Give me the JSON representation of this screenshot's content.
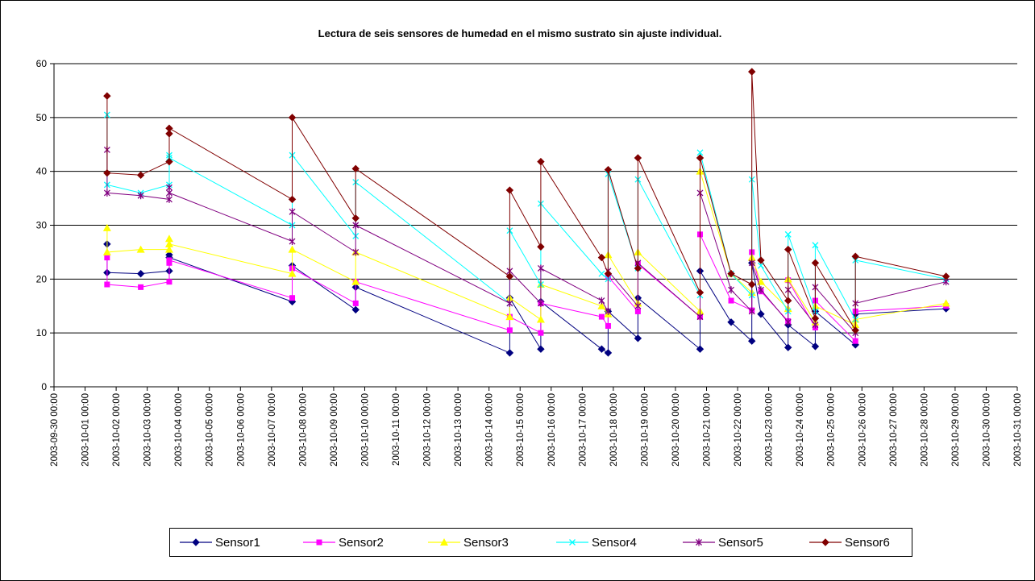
{
  "chart_data": {
    "type": "line",
    "title": "Lectura de seis sensores de humedad en el mismo sustrato sin ajuste individual.",
    "xlabel": "",
    "ylabel": "",
    "ylim": [
      0,
      60
    ],
    "y_ticks": [
      0,
      10,
      20,
      30,
      40,
      50,
      60
    ],
    "x_range_days": [
      "2003-09-30 00:00",
      "2003-10-31 00:00"
    ],
    "x_tick_labels": [
      "2003-09-30 00:00",
      "2003-10-01 00:00",
      "2003-10-02 00:00",
      "2003-10-03 00:00",
      "2003-10-04 00:00",
      "2003-10-05 00:00",
      "2003-10-06 00:00",
      "2003-10-07 00:00",
      "2003-10-08 00:00",
      "2003-10-09 00:00",
      "2003-10-10 00:00",
      "2003-10-11 00:00",
      "2003-10-12 00:00",
      "2003-10-13 00:00",
      "2003-10-14 00:00",
      "2003-10-15 00:00",
      "2003-10-16 00:00",
      "2003-10-17 00:00",
      "2003-10-18 00:00",
      "2003-10-19 00:00",
      "2003-10-20 00:00",
      "2003-10-21 00:00",
      "2003-10-22 00:00",
      "2003-10-23 00:00",
      "2003-10-24 00:00",
      "2003-10-25 00:00",
      "2003-10-26 00:00",
      "2003-10-27 00:00",
      "2003-10-28 00:00",
      "2003-10-29 00:00",
      "2003-10-30 00:00",
      "2003-10-31 00:00"
    ],
    "grid": "horizontal",
    "legend_position": "bottom",
    "x": [
      "2003-10-01 17:00",
      "2003-10-01 17:00",
      "2003-10-02 19:00",
      "2003-10-03 17:00",
      "2003-10-03 17:00",
      "2003-10-03 17:00",
      "2003-10-07 16:00",
      "2003-10-07 16:00",
      "2003-10-09 17:00",
      "2003-10-09 17:00",
      "2003-10-14 16:00",
      "2003-10-14 16:00",
      "2003-10-15 16:00",
      "2003-10-15 16:00",
      "2003-10-17 15:00",
      "2003-10-17 20:00",
      "2003-10-17 20:00",
      "2003-10-18 19:00",
      "2003-10-18 19:00",
      "2003-10-20 19:00",
      "2003-10-20 19:00",
      "2003-10-21 19:00",
      "2003-10-22 11:00",
      "2003-10-22 11:00",
      "2003-10-22 18:00",
      "2003-10-23 15:00",
      "2003-10-23 15:00",
      "2003-10-24 12:00",
      "2003-10-24 12:00",
      "2003-10-25 19:00",
      "2003-10-25 19:00",
      "2003-10-28 17:00"
    ],
    "series": [
      {
        "name": "Sensor1",
        "color": "#000080",
        "marker": "diamond",
        "values": [
          26.5,
          21.2,
          21.0,
          21.5,
          24.5,
          24.0,
          15.8,
          22.5,
          14.3,
          18.5,
          6.3,
          16.5,
          7.0,
          15.8,
          7.0,
          6.3,
          14.0,
          9.0,
          16.5,
          7.0,
          21.5,
          12.0,
          8.5,
          23.0,
          13.5,
          7.3,
          11.5,
          7.5,
          14.0,
          7.8,
          13.5,
          14.5
        ]
      },
      {
        "name": "Sensor2",
        "color": "#ff00ff",
        "marker": "square",
        "values": [
          24.0,
          19.0,
          18.5,
          19.5,
          23.0,
          23.5,
          16.5,
          22.0,
          15.5,
          19.5,
          10.5,
          13.0,
          10.0,
          15.5,
          13.0,
          11.3,
          20.5,
          14.0,
          22.8,
          13.0,
          28.3,
          16.0,
          14.2,
          25.0,
          17.7,
          12.2,
          19.8,
          11.0,
          16.0,
          8.5,
          14.0,
          15.0
        ]
      },
      {
        "name": "Sensor3",
        "color": "#ffff00",
        "marker": "triangle",
        "values": [
          29.5,
          25.0,
          25.5,
          25.5,
          27.5,
          26.5,
          21.0,
          25.5,
          19.5,
          25.0,
          13.0,
          16.5,
          12.5,
          19.0,
          15.0,
          13.5,
          24.5,
          15.5,
          25.0,
          14.0,
          40.0,
          21.0,
          17.5,
          24.0,
          19.5,
          14.5,
          20.0,
          12.0,
          15.0,
          11.5,
          12.5,
          15.5
        ]
      },
      {
        "name": "Sensor4",
        "color": "#00ffff",
        "marker": "x",
        "values": [
          50.5,
          37.5,
          36.0,
          37.5,
          43.0,
          42.5,
          30.0,
          43.0,
          28.0,
          38.0,
          15.5,
          29.0,
          19.0,
          34.0,
          21.0,
          20.0,
          39.5,
          22.0,
          38.5,
          17.0,
          43.5,
          21.0,
          17.0,
          38.5,
          22.5,
          14.0,
          28.3,
          14.0,
          26.3,
          12.5,
          23.5,
          20.0
        ]
      },
      {
        "name": "Sensor5",
        "color": "#800080",
        "marker": "star",
        "values": [
          44.0,
          36.0,
          35.5,
          34.8,
          37.0,
          36.0,
          27.0,
          32.5,
          25.0,
          30.0,
          15.5,
          21.5,
          15.5,
          22.0,
          16.0,
          14.0,
          21.5,
          15.0,
          23.0,
          13.0,
          36.0,
          18.0,
          14.0,
          23.0,
          18.0,
          12.0,
          18.0,
          11.5,
          18.5,
          10.0,
          15.5,
          19.5
        ]
      },
      {
        "name": "Sensor6",
        "color": "#800000",
        "marker": "diamond",
        "values": [
          54.0,
          39.7,
          39.3,
          41.8,
          47.0,
          48.0,
          34.8,
          50.0,
          31.3,
          40.5,
          20.5,
          36.5,
          26.0,
          41.8,
          24.0,
          21.0,
          40.3,
          22.0,
          42.5,
          17.5,
          42.5,
          21.0,
          19.0,
          58.5,
          23.5,
          16.0,
          25.5,
          12.7,
          23.0,
          10.5,
          24.2,
          20.5
        ]
      }
    ]
  }
}
